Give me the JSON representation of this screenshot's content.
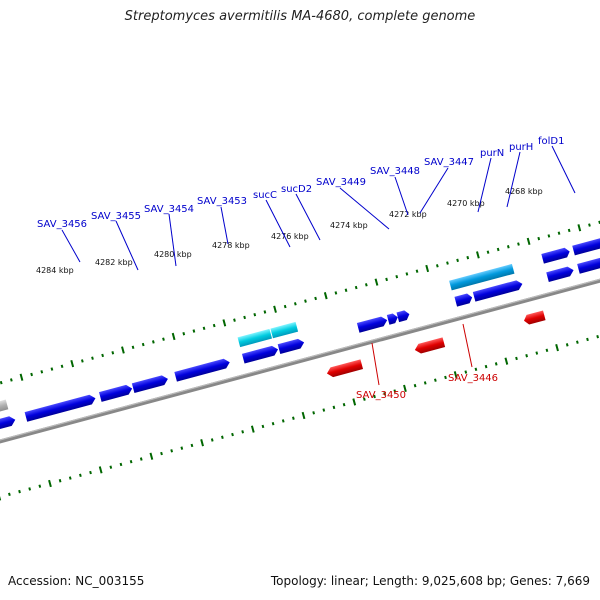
{
  "header": {
    "title": "Streptomyces avermitilis MA-4680, complete genome"
  },
  "footer": {
    "accession": "Accession: NC_003155",
    "summary": "Topology: linear; Length: 9,025,608 bp; Genes: 7,669"
  },
  "scale_labels": [
    "4284 kbp",
    "4282 kbp",
    "4280 kbp",
    "4278 kbp",
    "4276 kbp",
    "4274 kbp",
    "4272 kbp",
    "4270 kbp",
    "4268 kbp"
  ],
  "gene_labels_top": [
    "SAV_3456",
    "SAV_3455",
    "SAV_3454",
    "SAV_3453",
    "sucC",
    "sucD2",
    "SAV_3449",
    "SAV_3448",
    "SAV_3447",
    "purN",
    "purH",
    "folD1"
  ],
  "gene_labels_bottom": [
    "SAV_3450",
    "SAV_3446"
  ],
  "colors": {
    "forward_gene": "#0000dd",
    "reverse_gene": "#ee0000",
    "highlight_gene": "#00c8e0",
    "pseudo_gene": "#b0b0b0",
    "backbone": "#808080",
    "tick": "#006600",
    "label_forward": "#0000cc",
    "label_reverse": "#cc0000"
  }
}
